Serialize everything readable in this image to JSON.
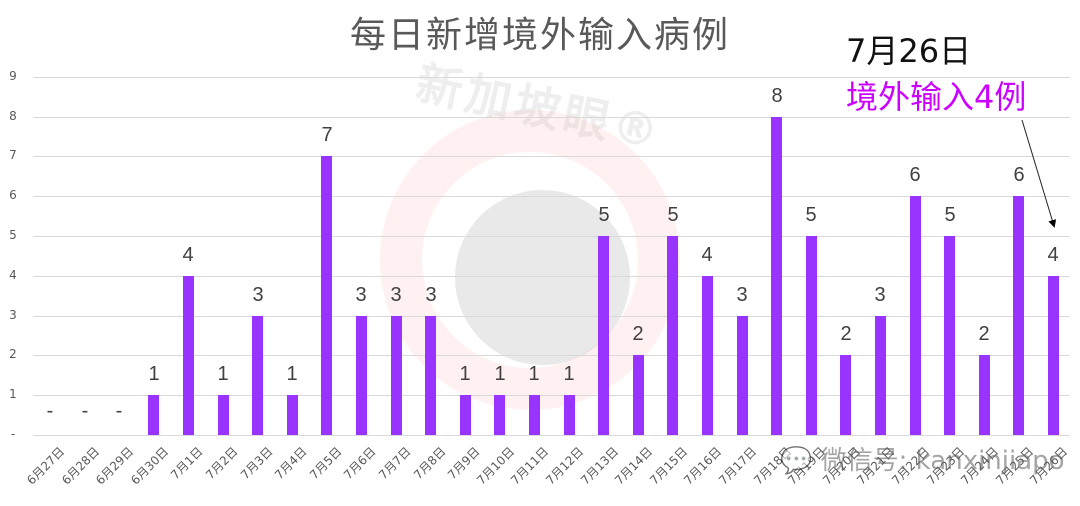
{
  "chart_data": {
    "type": "bar",
    "title": "每日新增境外输入病例",
    "categories": [
      "6月27日",
      "6月28日",
      "6月29日",
      "6月30日",
      "7月1日",
      "7月2日",
      "7月3日",
      "7月4日",
      "7月5日",
      "7月6日",
      "7月7日",
      "7月8日",
      "7月9日",
      "7月10日",
      "7月11日",
      "7月12日",
      "7月13日",
      "7月14日",
      "7月15日",
      "7月16日",
      "7月17日",
      "7月18日",
      "7月19日",
      "7月20日",
      "7月21日",
      "7月22日",
      "7月23日",
      "7月24日",
      "7月25日",
      "7月26日"
    ],
    "values": [
      0,
      0,
      0,
      1,
      4,
      1,
      3,
      1,
      7,
      3,
      3,
      3,
      1,
      1,
      1,
      1,
      5,
      2,
      5,
      4,
      3,
      8,
      5,
      2,
      3,
      6,
      5,
      2,
      6,
      4
    ],
    "data_labels": [
      "-",
      "-",
      "-",
      "1",
      "4",
      "1",
      "3",
      "1",
      "7",
      "3",
      "3",
      "3",
      "1",
      "1",
      "1",
      "1",
      "5",
      "2",
      "5",
      "4",
      "3",
      "8",
      "5",
      "2",
      "3",
      "6",
      "5",
      "2",
      "6",
      "4"
    ],
    "xlabel": "",
    "ylabel": "",
    "ylim": [
      0,
      9
    ],
    "yticks": [
      "-",
      "1",
      "2",
      "3",
      "4",
      "5",
      "6",
      "7",
      "8",
      "9"
    ],
    "grid": true,
    "legend": null,
    "bar_color": "#9933ff",
    "annotation": {
      "date": "7月26日",
      "text": "境外输入4例",
      "text_color": "#cc00ff",
      "points_to": "7月26日"
    }
  },
  "watermarks": {
    "logo_text": "新加坡眼®",
    "wechat": "微信号: kanxinjiapo"
  }
}
